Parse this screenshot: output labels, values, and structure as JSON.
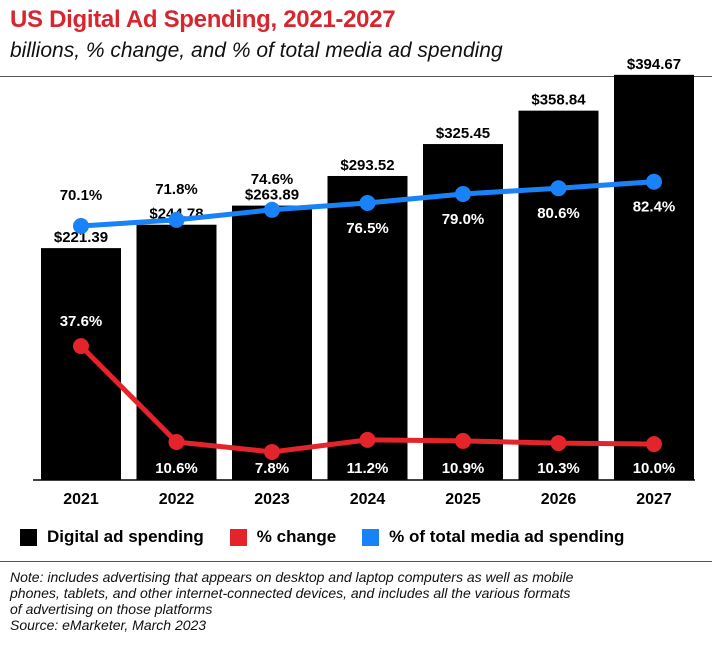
{
  "header": {
    "title": "US Digital Ad Spending, 2021-2027",
    "subtitle": "billions, % change, and % of total media ad spending"
  },
  "chart_data": {
    "type": "bar",
    "title": "US Digital Ad Spending, 2021-2027",
    "subtitle": "billions, % change, and % of total media ad spending",
    "categories": [
      "2021",
      "2022",
      "2023",
      "2024",
      "2025",
      "2026",
      "2027"
    ],
    "series": [
      {
        "name": "Digital ad spending",
        "type": "bar",
        "color": "#000000",
        "values": [
          221.39,
          244.78,
          263.89,
          293.52,
          325.45,
          358.84,
          394.67
        ],
        "labels": [
          "$221.39",
          "$244.78",
          "$263.89",
          "$293.52",
          "$325.45",
          "$358.84",
          "$394.67"
        ]
      },
      {
        "name": "% change",
        "type": "line",
        "color": "#e3242b",
        "values": [
          37.6,
          10.6,
          7.8,
          11.2,
          10.9,
          10.3,
          10.0
        ],
        "labels": [
          "37.6%",
          "10.6%",
          "7.8%",
          "11.2%",
          "10.9%",
          "10.3%",
          "10.0%"
        ]
      },
      {
        "name": "% of total media ad spending",
        "type": "line",
        "color": "#1a82f7",
        "values": [
          70.1,
          71.8,
          74.6,
          76.5,
          79.0,
          80.6,
          82.4
        ],
        "labels": [
          "70.1%",
          "71.8%",
          "74.6%",
          "76.5%",
          "79.0%",
          "80.6%",
          "82.4%"
        ]
      }
    ],
    "legend_position": "bottom",
    "grid": false
  },
  "legend": [
    {
      "label": "Digital ad spending",
      "color": "#000000"
    },
    {
      "label": "% change",
      "color": "#e3242b"
    },
    {
      "label": "% of total media ad spending",
      "color": "#1a82f7"
    }
  ],
  "note": {
    "lines": [
      "Note: includes advertising that appears on desktop and laptop computers as well as mobile",
      "phones, tablets, and other internet-connected devices, and includes all the various formats",
      "of advertising on those platforms"
    ],
    "source": "Source: eMarketer, March 2023"
  }
}
